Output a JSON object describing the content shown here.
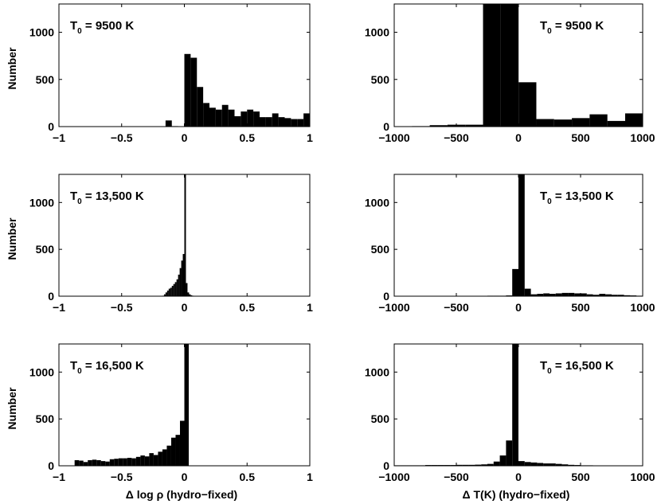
{
  "ylabel": "Number",
  "xlabels": [
    "Δ log ρ (hydro−fixed)",
    "Δ T(K) (hydro−fixed)"
  ],
  "chart_data": [
    {
      "type": "bar",
      "annotation": {
        "main": "T",
        "sub": "0",
        "rest": " = 9500 K"
      },
      "xlim": [
        -1,
        1
      ],
      "ylim": [
        0,
        1300
      ],
      "xticks": [
        "−1",
        "−0.5",
        "0",
        "0.5",
        "1"
      ],
      "yticks": [
        "0",
        "500",
        "1000"
      ],
      "bin_width": 0.05,
      "bin_starts": [
        -0.2,
        -0.15,
        -0.1,
        -0.05,
        0.0,
        0.05,
        0.1,
        0.15,
        0.2,
        0.25,
        0.3,
        0.35,
        0.4,
        0.45,
        0.5,
        0.55,
        0.6,
        0.65,
        0.7,
        0.75,
        0.8,
        0.85,
        0.9,
        0.95
      ],
      "values": [
        0,
        65,
        5,
        0,
        770,
        730,
        420,
        250,
        200,
        180,
        230,
        180,
        110,
        160,
        180,
        160,
        100,
        100,
        140,
        100,
        90,
        80,
        80,
        140
      ]
    },
    {
      "type": "bar",
      "annotation": {
        "main": "T",
        "sub": "0",
        "rest": " = 9500 K"
      },
      "xlim": [
        -1000,
        1000
      ],
      "ylim": [
        0,
        1300
      ],
      "xticks": [
        "−1000",
        "−500",
        "0",
        "500",
        "1000"
      ],
      "yticks": [
        "0",
        "500",
        "1000"
      ],
      "bin_width": 143,
      "bin_starts": [
        -1000,
        -857,
        -714,
        -571,
        -428,
        -285,
        -142,
        1,
        144,
        287,
        430,
        573,
        716,
        859
      ],
      "values": [
        3,
        5,
        15,
        20,
        20,
        1300,
        1300,
        470,
        80,
        75,
        90,
        130,
        60,
        140
      ]
    },
    {
      "type": "bar",
      "annotation": {
        "main": "T",
        "sub": "0",
        "rest": " = 13,500 K"
      },
      "xlim": [
        -1,
        1
      ],
      "ylim": [
        0,
        1300
      ],
      "xticks": [
        "−1",
        "−0.5",
        "0",
        "0.5",
        "1"
      ],
      "yticks": [
        "0",
        "500",
        "1000"
      ],
      "bin_width": 0.0125,
      "bin_starts": [
        -0.175,
        -0.1625,
        -0.15,
        -0.1375,
        -0.125,
        -0.1125,
        -0.1,
        -0.0875,
        -0.075,
        -0.0625,
        -0.05,
        -0.0375,
        -0.025,
        -0.0125,
        0.0,
        0.0125,
        0.025,
        0.0375,
        0.05,
        0.0625,
        0.075
      ],
      "values": [
        5,
        20,
        40,
        60,
        80,
        90,
        110,
        130,
        150,
        180,
        230,
        300,
        380,
        450,
        1300,
        140,
        40,
        20,
        10,
        5,
        3
      ]
    },
    {
      "type": "bar",
      "annotation": {
        "main": "T",
        "sub": "0",
        "rest": " = 13,500 K"
      },
      "xlim": [
        -1000,
        1000
      ],
      "ylim": [
        0,
        1300
      ],
      "xticks": [
        "−1000",
        "−500",
        "0",
        "500",
        "1000"
      ],
      "yticks": [
        "0",
        "500",
        "1000"
      ],
      "bin_width": 50,
      "bin_starts": [
        -300,
        -250,
        -200,
        -150,
        -100,
        -50,
        0,
        50,
        100,
        150,
        200,
        250,
        300,
        350,
        400,
        450,
        500,
        550,
        600,
        650,
        700,
        750,
        800,
        850,
        900,
        950
      ],
      "values": [
        4,
        5,
        5,
        5,
        8,
        290,
        1300,
        80,
        20,
        25,
        30,
        25,
        30,
        35,
        35,
        30,
        30,
        20,
        15,
        25,
        20,
        15,
        15,
        10,
        8,
        5
      ]
    },
    {
      "type": "bar",
      "annotation": {
        "main": "T",
        "sub": "0",
        "rest": " = 16,500 K"
      },
      "xlim": [
        -1,
        1
      ],
      "ylim": [
        0,
        1300
      ],
      "xticks": [
        "−1",
        "−0.5",
        "0",
        "0.5",
        "1"
      ],
      "yticks": [
        "0",
        "500",
        "1000"
      ],
      "bin_width": 0.035,
      "bin_starts": [
        -0.875,
        -0.84,
        -0.805,
        -0.77,
        -0.735,
        -0.7,
        -0.665,
        -0.63,
        -0.595,
        -0.56,
        -0.525,
        -0.49,
        -0.455,
        -0.42,
        -0.385,
        -0.35,
        -0.315,
        -0.28,
        -0.245,
        -0.21,
        -0.175,
        -0.14,
        -0.105,
        -0.07,
        -0.035,
        0.0
      ],
      "values": [
        60,
        55,
        40,
        60,
        65,
        60,
        50,
        45,
        70,
        75,
        80,
        80,
        85,
        80,
        95,
        110,
        100,
        135,
        115,
        150,
        175,
        215,
        300,
        330,
        480,
        1300
      ]
    },
    {
      "type": "bar",
      "annotation": {
        "main": "T",
        "sub": "0",
        "rest": " = 16,500 K"
      },
      "xlim": [
        -1000,
        1000
      ],
      "ylim": [
        0,
        1300
      ],
      "xticks": [
        "−1000",
        "−500",
        "0",
        "500",
        "1000"
      ],
      "yticks": [
        "0",
        "500",
        "1000"
      ],
      "bin_width": 50,
      "bin_starts": [
        -1000,
        -950,
        -900,
        -850,
        -800,
        -750,
        -700,
        -650,
        -600,
        -550,
        -500,
        -450,
        -400,
        -350,
        -300,
        -250,
        -200,
        -150,
        -100,
        -50,
        0,
        50,
        100,
        150,
        200,
        250,
        300,
        350,
        400,
        450,
        500,
        550,
        600,
        650,
        700,
        750,
        800,
        850,
        900,
        950
      ],
      "values": [
        5,
        5,
        5,
        5,
        5,
        8,
        8,
        8,
        8,
        8,
        10,
        10,
        10,
        12,
        15,
        20,
        45,
        110,
        270,
        1300,
        50,
        40,
        35,
        30,
        25,
        25,
        20,
        15,
        10,
        8,
        5,
        5,
        4,
        3,
        3,
        2,
        2,
        2,
        2,
        2
      ]
    }
  ]
}
